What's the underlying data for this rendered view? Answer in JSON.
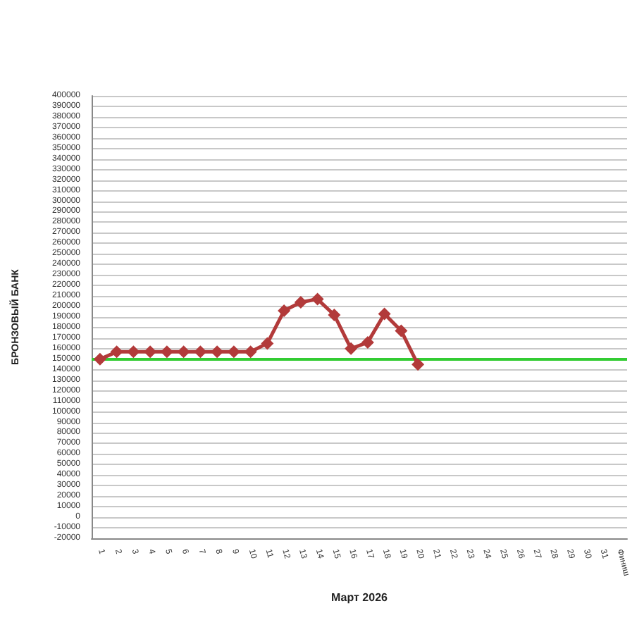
{
  "chart_data": {
    "type": "line",
    "xlabel": "Март 2026",
    "ylabel": "БРОНЗОВЫЙ БАНК",
    "categories": [
      "1",
      "2",
      "3",
      "4",
      "5",
      "6",
      "7",
      "8",
      "9",
      "10",
      "11",
      "12",
      "13",
      "14",
      "15",
      "16",
      "17",
      "18",
      "19",
      "20",
      "21",
      "22",
      "23",
      "24",
      "25",
      "26",
      "27",
      "28",
      "29",
      "30",
      "31",
      "Финиш"
    ],
    "series": [
      {
        "color": "#b23a3a",
        "values": [
          150000,
          157000,
          157000,
          157000,
          157000,
          157000,
          157000,
          157000,
          157000,
          157000,
          165000,
          196000,
          204000,
          207000,
          192000,
          160000,
          166000,
          193000,
          177000,
          145000,
          null,
          null,
          null,
          null,
          null,
          null,
          null,
          null,
          null,
          null,
          null,
          null
        ]
      }
    ],
    "ylim": [
      -20000,
      400000
    ],
    "yticks": [
      -20000,
      -10000,
      0,
      10000,
      20000,
      30000,
      40000,
      50000,
      60000,
      70000,
      80000,
      90000,
      100000,
      110000,
      120000,
      130000,
      140000,
      150000,
      160000,
      170000,
      180000,
      190000,
      200000,
      210000,
      220000,
      230000,
      240000,
      250000,
      260000,
      270000,
      280000,
      290000,
      300000,
      310000,
      320000,
      330000,
      340000,
      350000,
      360000,
      370000,
      380000,
      390000,
      400000
    ],
    "ref_lines": [
      {
        "axis": "y",
        "value": 150000,
        "color": "#33cc33",
        "line_style": "solid"
      }
    ],
    "grid": "y",
    "marker": "diamond",
    "line_style": "solid"
  }
}
